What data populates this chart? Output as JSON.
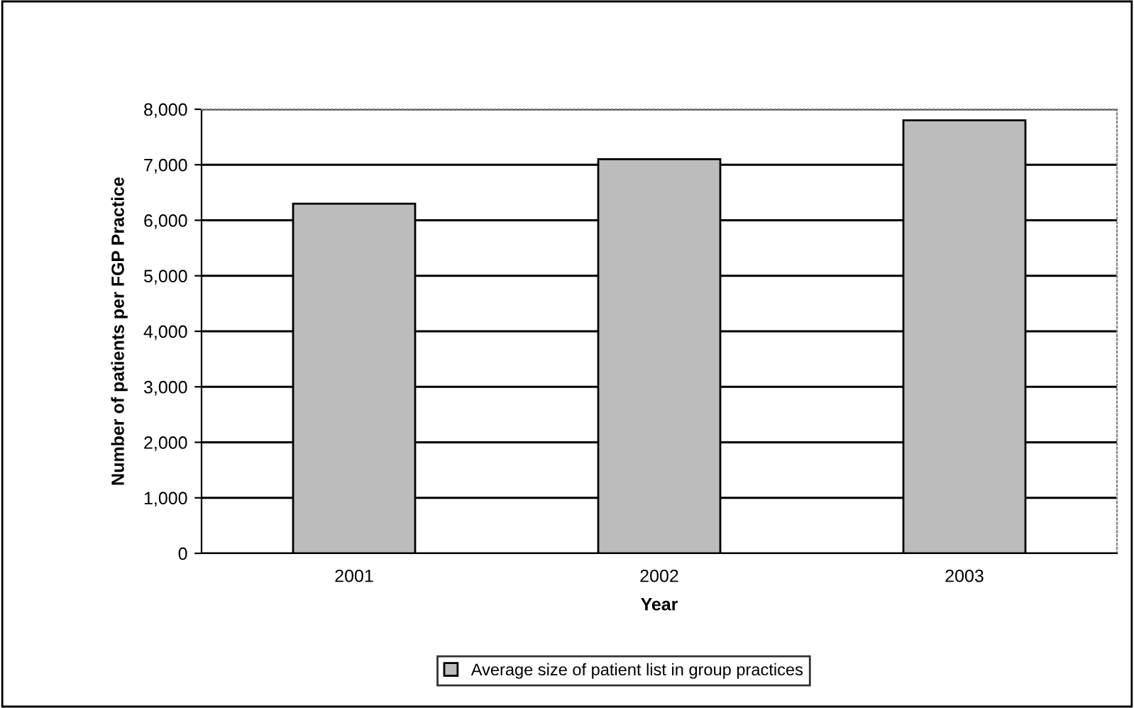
{
  "chart_data": {
    "type": "bar",
    "xlabel": "Year",
    "ylabel": "Number of patients per FGP Practice",
    "categories": [
      "2001",
      "2002",
      "2003"
    ],
    "series": [
      {
        "name": "Average size of patient list in group practices",
        "color": "#bcbcbc",
        "values": [
          6300,
          7100,
          7800
        ]
      }
    ],
    "ylim": [
      0,
      8000
    ],
    "yticks": [
      {
        "value": 0,
        "label": "0"
      },
      {
        "value": 1000,
        "label": "1,000"
      },
      {
        "value": 2000,
        "label": "2,000"
      },
      {
        "value": 3000,
        "label": "3,000"
      },
      {
        "value": 4000,
        "label": "4,000"
      },
      {
        "value": 5000,
        "label": "5,000"
      },
      {
        "value": 6000,
        "label": "6,000"
      },
      {
        "value": 7000,
        "label": "7,000"
      },
      {
        "value": 8000,
        "label": "8,000"
      }
    ],
    "grid": "y",
    "legend": "bottom"
  }
}
